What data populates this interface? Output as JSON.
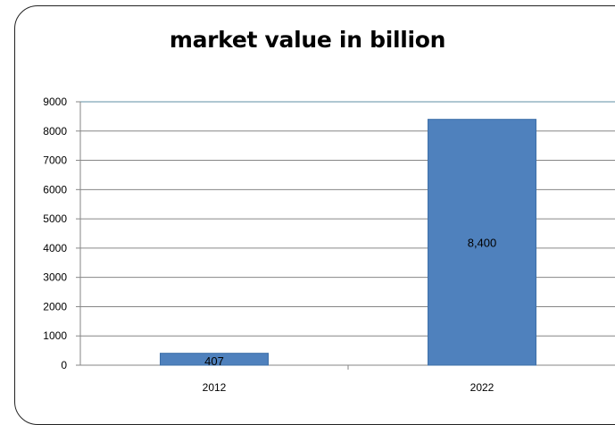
{
  "chart_data": {
    "type": "bar",
    "title": "market value in billion",
    "categories": [
      "2012",
      "2022"
    ],
    "values": [
      407,
      8400
    ],
    "data_labels": [
      "407",
      "8,400"
    ],
    "xlabel": "",
    "ylabel": "",
    "ylim": [
      0,
      9000
    ],
    "yticks": [
      "0",
      "1000",
      "2000",
      "3000",
      "4000",
      "5000",
      "6000",
      "7000",
      "8000",
      "9000"
    ],
    "grid": "horizontal",
    "legend": "none",
    "colors": {
      "bar": "#4f81bd",
      "bar_border": "#3d6fa8",
      "grid": "#868686",
      "axis": "#868686",
      "top_line": "#5f8fa5"
    }
  }
}
